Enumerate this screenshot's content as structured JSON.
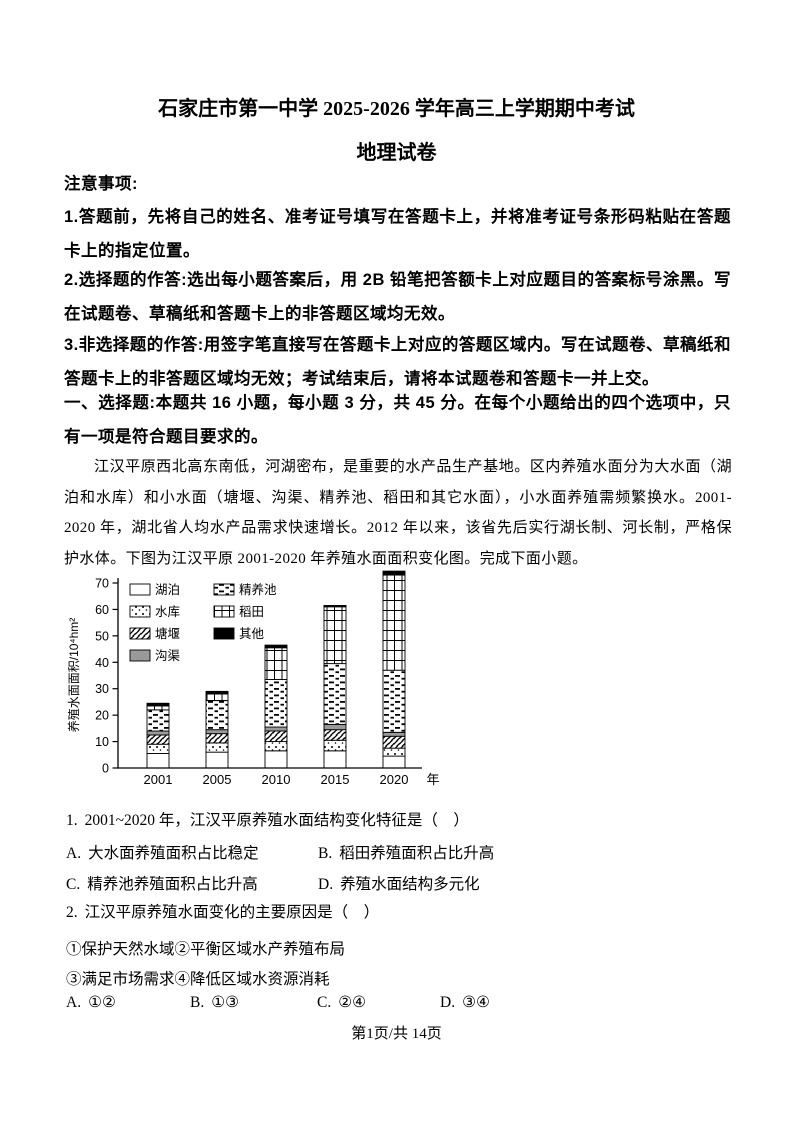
{
  "page": {
    "title_line1": "石家庄市第一中学 2025-2026 学年高三上学期期中考试",
    "title_line2": "地理试卷",
    "footer": "第1页/共 14页"
  },
  "notices": {
    "heading": "注意事项:",
    "items": [
      "1.答题前，先将自己的姓名、准考证号填写在答题卡上，并将准考证号条形码粘贴在答题卡上的指定位置。",
      "2.选择题的作答:选出每小题答案后，用 2B 铅笔把答额卡上对应题目的答案标号涂黑。写在试题卷、草稿纸和答题卡上的非答题区域均无效。",
      "3.非选择题的作答:用签字笔直接写在答题卡上对应的答题区域内。写在试题卷、草稿纸和答题卡上的非答题区域均无效；考试结束后，请将本试题卷和答题卡一并上交。"
    ],
    "section_heading": "一、选择题:本题共 16 小题，每小题 3 分，共 45 分。在每个小题给出的四个选项中，只有一项是符合题目要求的。"
  },
  "passage": "江汉平原西北高东南低，河湖密布，是重要的水产品生产基地。区内养殖水面分为大水面（湖泊和水库）和小水面（塘堰、沟渠、精养池、稻田和其它水面），小水面养殖需频繁换水。2001-2020 年，湖北省人均水产品需求快速增长。2012 年以来，该省先后实行湖长制、河长制，严格保护水体。下图为江汉平原 2001-2020 年养殖水面面积变化图。完成下面小题。",
  "chart_data": {
    "type": "bar",
    "stacked": true,
    "title": "江汉平原2001-2020年养殖水面面积变化",
    "ylabel": "养殖水面面积/10⁴hm²",
    "xlabel": "年",
    "ylim": [
      0,
      70
    ],
    "yticks": [
      0,
      10,
      20,
      30,
      40,
      50,
      60,
      70
    ],
    "grid": false,
    "legend_position": "upper-left-two-columns",
    "legend_columns": [
      4,
      3
    ],
    "categories": [
      "2001",
      "2005",
      "2010",
      "2015",
      "2020"
    ],
    "series": [
      {
        "name": "湖泊",
        "pattern": "white",
        "values": [
          5.5,
          6,
          6.5,
          6.5,
          4.5
        ]
      },
      {
        "name": "水库",
        "pattern": "dots",
        "values": [
          3.5,
          3.5,
          3.5,
          4,
          3
        ]
      },
      {
        "name": "塘堰",
        "pattern": "diagonal",
        "values": [
          3.5,
          3.5,
          4,
          4,
          4.5
        ]
      },
      {
        "name": "沟渠",
        "pattern": "gray",
        "values": [
          1.5,
          1.5,
          1.5,
          2,
          1.5
        ]
      },
      {
        "name": "精养池",
        "pattern": "dashes",
        "values": [
          8,
          11,
          18,
          23,
          23.5
        ]
      },
      {
        "name": "稻田",
        "pattern": "grid",
        "values": [
          1.5,
          2.5,
          12,
          21.5,
          36
        ]
      },
      {
        "name": "其他",
        "pattern": "black",
        "values": [
          1,
          1,
          1,
          0.5,
          1.5
        ]
      }
    ],
    "totals": [
      24.5,
      29,
      46.5,
      61.5,
      74.5
    ],
    "colors": {
      "gray": "#9a9a9a",
      "black": "#000000",
      "white": "#ffffff"
    }
  },
  "questions": [
    {
      "number": "1.",
      "text": "2001~2020 年，江汉平原养殖水面结构变化特征是（　）",
      "options": [
        {
          "label": "A.",
          "text": "大水面养殖面积占比稳定"
        },
        {
          "label": "B.",
          "text": "稻田养殖面积占比升高"
        },
        {
          "label": "C.",
          "text": "精养池养殖面积占比升高"
        },
        {
          "label": "D.",
          "text": "养殖水面结构多元化"
        }
      ]
    },
    {
      "number": "2.",
      "text": "江汉平原养殖水面变化的主要原因是（　）",
      "statements": [
        "①保护天然水域②平衡区域水产养殖布局",
        "③满足市场需求④降低区域水资源消耗"
      ],
      "options": [
        {
          "label": "A.",
          "text": "①②"
        },
        {
          "label": "B.",
          "text": "①③"
        },
        {
          "label": "C.",
          "text": "②④"
        },
        {
          "label": "D.",
          "text": "③④"
        }
      ]
    }
  ]
}
